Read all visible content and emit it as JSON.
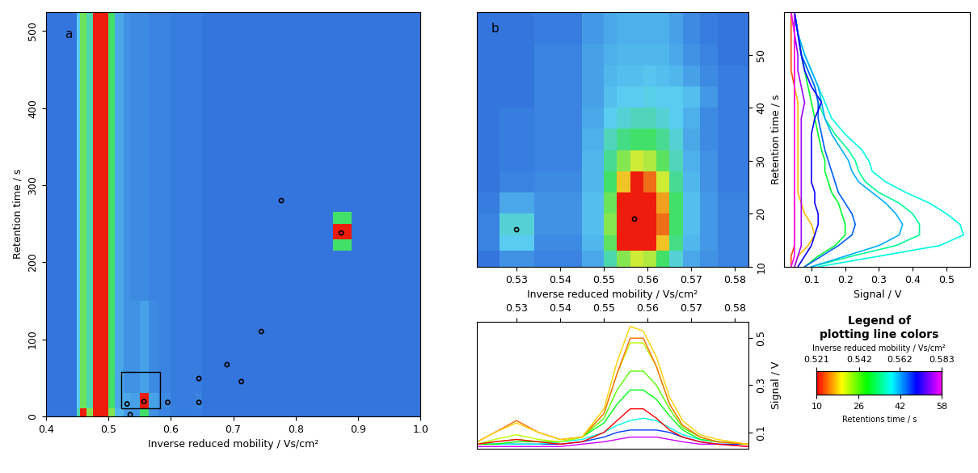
{
  "chart_data": [
    {
      "type": "heatmap",
      "panel_label": "a",
      "x_label": "Inverse reduced mobility / Vs/cm²",
      "y_label": "Retention time / s",
      "xlim": [
        0.4,
        1.0
      ],
      "ylim": [
        0,
        525
      ],
      "xticks": [
        0.4,
        0.5,
        0.6,
        0.7,
        0.8,
        0.9,
        {
          "value": 1,
          "label": "1.0"
        }
      ],
      "yticks": [
        0,
        100,
        200,
        300,
        400,
        500
      ],
      "x_edges": [
        0.4,
        0.45,
        0.455,
        0.465,
        0.475,
        0.5,
        0.51,
        0.525,
        0.535,
        0.55,
        0.565,
        0.58,
        0.6,
        0.64,
        0.65,
        0.86,
        0.89,
        1.0
      ],
      "y_edges": [
        0,
        10,
        30,
        150,
        215,
        230,
        250,
        265,
        525
      ],
      "color_range": [
        0.05,
        0.55
      ],
      "cells": [
        [
          0.08,
          0.25,
          0.6,
          0.35,
          0.6,
          0.35,
          0.17,
          0.13,
          0.13,
          0.3,
          0.12,
          0.1,
          0.09,
          0.09,
          0.08,
          0.08,
          0.08
        ],
        [
          0.08,
          0.2,
          0.33,
          0.25,
          0.6,
          0.3,
          0.15,
          0.15,
          0.14,
          0.55,
          0.14,
          0.11,
          0.09,
          0.1,
          0.08,
          0.08,
          0.08
        ],
        [
          0.08,
          0.2,
          0.33,
          0.25,
          0.6,
          0.3,
          0.15,
          0.12,
          0.12,
          0.14,
          0.11,
          0.1,
          0.09,
          0.09,
          0.08,
          0.08,
          0.08
        ],
        [
          0.08,
          0.2,
          0.33,
          0.25,
          0.6,
          0.3,
          0.15,
          0.12,
          0.11,
          0.11,
          0.1,
          0.1,
          0.09,
          0.09,
          0.08,
          0.08,
          0.08
        ],
        [
          0.08,
          0.2,
          0.33,
          0.25,
          0.6,
          0.3,
          0.15,
          0.12,
          0.11,
          0.11,
          0.1,
          0.1,
          0.09,
          0.09,
          0.08,
          0.3,
          0.08
        ],
        [
          0.08,
          0.2,
          0.33,
          0.25,
          0.6,
          0.3,
          0.15,
          0.12,
          0.11,
          0.11,
          0.1,
          0.1,
          0.09,
          0.09,
          0.08,
          0.55,
          0.08
        ],
        [
          0.08,
          0.2,
          0.33,
          0.25,
          0.6,
          0.3,
          0.15,
          0.12,
          0.11,
          0.11,
          0.1,
          0.1,
          0.09,
          0.09,
          0.08,
          0.3,
          0.08
        ],
        [
          0.08,
          0.2,
          0.33,
          0.25,
          0.6,
          0.3,
          0.15,
          0.12,
          0.11,
          0.11,
          0.1,
          0.1,
          0.09,
          0.09,
          0.08,
          0.08,
          0.08
        ]
      ],
      "points": [
        [
          0.53,
          16
        ],
        [
          0.535,
          2
        ],
        [
          0.557,
          19
        ],
        [
          0.595,
          18
        ],
        [
          0.645,
          18
        ],
        [
          0.645,
          49
        ],
        [
          0.69,
          67
        ],
        [
          0.713,
          45
        ],
        [
          0.745,
          110
        ],
        [
          0.777,
          280
        ],
        [
          0.873,
          238
        ]
      ],
      "zoom_box": {
        "x": [
          0.521,
          0.583
        ],
        "y": [
          10,
          58
        ]
      }
    },
    {
      "type": "heatmap",
      "panel_label": "b",
      "x_label": "Inverse reduced mobility / Vs/cm²",
      "y_label": "Retention time / s",
      "xlim": [
        0.521,
        0.583
      ],
      "ylim": [
        10,
        58
      ],
      "xticks": [
        0.53,
        0.54,
        0.55,
        0.56,
        0.57,
        0.58
      ],
      "yticks": [
        10,
        20,
        30,
        40,
        50
      ],
      "x_edges": [
        0.521,
        0.526,
        0.534,
        0.545,
        0.55,
        0.553,
        0.556,
        0.559,
        0.562,
        0.565,
        0.568,
        0.572,
        0.576,
        0.583
      ],
      "y_edges": [
        10,
        13,
        16,
        20,
        24,
        28,
        32,
        36,
        40,
        44,
        48,
        52,
        58
      ],
      "color_range": [
        0.05,
        0.55
      ],
      "cells": [
        [
          0.08,
          0.12,
          0.1,
          0.15,
          0.25,
          0.35,
          0.4,
          0.38,
          0.3,
          0.22,
          0.15,
          0.12,
          0.1
        ],
        [
          0.1,
          0.2,
          0.11,
          0.17,
          0.32,
          0.55,
          0.58,
          0.55,
          0.45,
          0.28,
          0.17,
          0.13,
          0.1
        ],
        [
          0.1,
          0.22,
          0.12,
          0.18,
          0.35,
          0.58,
          0.6,
          0.6,
          0.5,
          0.3,
          0.18,
          0.13,
          0.1
        ],
        [
          0.09,
          0.15,
          0.12,
          0.18,
          0.33,
          0.55,
          0.6,
          0.58,
          0.47,
          0.3,
          0.18,
          0.13,
          0.1
        ],
        [
          0.08,
          0.1,
          0.11,
          0.17,
          0.3,
          0.45,
          0.55,
          0.5,
          0.4,
          0.27,
          0.17,
          0.12,
          0.09
        ],
        [
          0.08,
          0.09,
          0.1,
          0.17,
          0.27,
          0.35,
          0.4,
          0.38,
          0.32,
          0.24,
          0.16,
          0.12,
          0.09
        ],
        [
          0.08,
          0.09,
          0.1,
          0.16,
          0.24,
          0.28,
          0.3,
          0.3,
          0.27,
          0.22,
          0.15,
          0.11,
          0.09
        ],
        [
          0.08,
          0.09,
          0.1,
          0.15,
          0.2,
          0.22,
          0.24,
          0.24,
          0.22,
          0.2,
          0.16,
          0.11,
          0.09
        ],
        [
          0.08,
          0.08,
          0.1,
          0.14,
          0.18,
          0.2,
          0.2,
          0.21,
          0.2,
          0.2,
          0.18,
          0.13,
          0.09
        ],
        [
          0.08,
          0.08,
          0.1,
          0.14,
          0.17,
          0.18,
          0.18,
          0.19,
          0.18,
          0.17,
          0.14,
          0.11,
          0.09
        ],
        [
          0.08,
          0.08,
          0.1,
          0.14,
          0.16,
          0.17,
          0.17,
          0.17,
          0.17,
          0.15,
          0.12,
          0.1,
          0.08
        ],
        [
          0.08,
          0.08,
          0.09,
          0.13,
          0.15,
          0.16,
          0.16,
          0.16,
          0.16,
          0.14,
          0.11,
          0.09,
          0.08
        ]
      ],
      "points": [
        [
          0.53,
          17
        ],
        [
          0.557,
          19
        ]
      ]
    },
    {
      "type": "line",
      "orientation": "horizontal",
      "x_label": "Signal / V",
      "xlim": [
        0.02,
        0.57
      ],
      "ylim": [
        10,
        58
      ],
      "xticks": [
        0.1,
        0.2,
        0.3,
        0.4,
        0.5
      ],
      "tick_labels": "x",
      "y": [
        10,
        12,
        14,
        16,
        18,
        20,
        22,
        24,
        26,
        28,
        30,
        32,
        35,
        38,
        41,
        44,
        47,
        50,
        54,
        58
      ],
      "series": [
        {
          "mobility": 0.525,
          "values": [
            0.04,
            0.04,
            0.05,
            0.05,
            0.05,
            0.05,
            0.05,
            0.05,
            0.05,
            0.05,
            0.05,
            0.05,
            0.05,
            0.05,
            0.05,
            0.05,
            0.04,
            0.04,
            0.04,
            0.04
          ]
        },
        {
          "mobility": 0.53,
          "values": [
            0.05,
            0.06,
            0.09,
            0.11,
            0.1,
            0.08,
            0.07,
            0.06,
            0.06,
            0.06,
            0.06,
            0.06,
            0.06,
            0.06,
            0.06,
            0.05,
            0.05,
            0.05,
            0.05,
            0.04
          ]
        },
        {
          "mobility": 0.548,
          "values": [
            0.08,
            0.12,
            0.17,
            0.2,
            0.2,
            0.19,
            0.18,
            0.16,
            0.15,
            0.14,
            0.14,
            0.13,
            0.12,
            0.11,
            0.1,
            0.09,
            0.08,
            0.07,
            0.06,
            0.05
          ]
        },
        {
          "mobility": 0.553,
          "values": [
            0.1,
            0.22,
            0.35,
            0.42,
            0.42,
            0.4,
            0.36,
            0.3,
            0.26,
            0.24,
            0.23,
            0.21,
            0.17,
            0.14,
            0.12,
            0.11,
            0.09,
            0.07,
            0.06,
            0.05
          ]
        },
        {
          "mobility": 0.557,
          "values": [
            0.12,
            0.3,
            0.48,
            0.55,
            0.54,
            0.5,
            0.45,
            0.38,
            0.32,
            0.28,
            0.27,
            0.25,
            0.2,
            0.16,
            0.14,
            0.12,
            0.1,
            0.08,
            0.06,
            0.05
          ]
        },
        {
          "mobility": 0.562,
          "values": [
            0.1,
            0.2,
            0.3,
            0.36,
            0.37,
            0.35,
            0.32,
            0.28,
            0.24,
            0.22,
            0.21,
            0.19,
            0.16,
            0.14,
            0.13,
            0.12,
            0.1,
            0.08,
            0.06,
            0.05
          ]
        },
        {
          "mobility": 0.566,
          "values": [
            0.08,
            0.13,
            0.18,
            0.22,
            0.23,
            0.22,
            0.2,
            0.18,
            0.17,
            0.16,
            0.15,
            0.14,
            0.13,
            0.12,
            0.12,
            0.11,
            0.09,
            0.07,
            0.06,
            0.05
          ]
        },
        {
          "mobility": 0.571,
          "values": [
            0.06,
            0.08,
            0.1,
            0.11,
            0.12,
            0.12,
            0.11,
            0.11,
            0.1,
            0.1,
            0.1,
            0.1,
            0.1,
            0.11,
            0.13,
            0.1,
            0.08,
            0.07,
            0.06,
            0.05
          ]
        },
        {
          "mobility": 0.578,
          "values": [
            0.05,
            0.06,
            0.07,
            0.07,
            0.07,
            0.07,
            0.07,
            0.07,
            0.07,
            0.07,
            0.07,
            0.07,
            0.07,
            0.07,
            0.08,
            0.07,
            0.06,
            0.06,
            0.05,
            0.05
          ]
        },
        {
          "mobility": 0.583,
          "values": [
            0.04,
            0.05,
            0.05,
            0.05,
            0.05,
            0.05,
            0.05,
            0.05,
            0.05,
            0.05,
            0.05,
            0.05,
            0.05,
            0.05,
            0.05,
            0.05,
            0.05,
            0.05,
            0.05,
            0.04
          ]
        }
      ]
    },
    {
      "type": "line",
      "y_label": "Signal / V",
      "xlim": [
        0.521,
        0.583
      ],
      "ylim": [
        0.03,
        0.57
      ],
      "xticks": [
        0.53,
        0.54,
        0.55,
        0.56,
        0.57,
        0.58
      ],
      "yticks": [
        0.1,
        0.3,
        0.5
      ],
      "x": [
        0.521,
        0.525,
        0.53,
        0.535,
        0.54,
        0.545,
        0.55,
        0.553,
        0.556,
        0.559,
        0.562,
        0.565,
        0.568,
        0.572,
        0.576,
        0.583
      ],
      "series": [
        {
          "retention_time": 56,
          "values": [
            0.04,
            0.04,
            0.04,
            0.04,
            0.04,
            0.05,
            0.06,
            0.07,
            0.08,
            0.08,
            0.08,
            0.07,
            0.06,
            0.05,
            0.05,
            0.04
          ]
        },
        {
          "retention_time": 46,
          "values": [
            0.05,
            0.05,
            0.05,
            0.05,
            0.05,
            0.06,
            0.08,
            0.1,
            0.11,
            0.11,
            0.11,
            0.1,
            0.08,
            0.06,
            0.05,
            0.05
          ]
        },
        {
          "retention_time": 38,
          "values": [
            0.05,
            0.05,
            0.05,
            0.05,
            0.06,
            0.07,
            0.1,
            0.13,
            0.15,
            0.16,
            0.15,
            0.12,
            0.09,
            0.07,
            0.06,
            0.05
          ]
        },
        {
          "retention_time": 30,
          "values": [
            0.05,
            0.05,
            0.06,
            0.06,
            0.06,
            0.08,
            0.14,
            0.22,
            0.28,
            0.28,
            0.24,
            0.17,
            0.11,
            0.07,
            0.06,
            0.05
          ]
        },
        {
          "retention_time": 26,
          "values": [
            0.05,
            0.06,
            0.07,
            0.06,
            0.06,
            0.08,
            0.16,
            0.28,
            0.36,
            0.36,
            0.3,
            0.2,
            0.12,
            0.08,
            0.06,
            0.05
          ]
        },
        {
          "retention_time": 22,
          "values": [
            0.05,
            0.07,
            0.09,
            0.07,
            0.06,
            0.08,
            0.18,
            0.35,
            0.48,
            0.48,
            0.38,
            0.22,
            0.13,
            0.08,
            0.06,
            0.05
          ]
        },
        {
          "retention_time": 10,
          "values": [
            0.05,
            0.06,
            0.07,
            0.06,
            0.05,
            0.06,
            0.1,
            0.15,
            0.2,
            0.2,
            0.16,
            0.11,
            0.08,
            0.06,
            0.05,
            0.04
          ]
        },
        {
          "retention_time": 14,
          "values": [
            0.06,
            0.1,
            0.15,
            0.1,
            0.07,
            0.08,
            0.18,
            0.35,
            0.5,
            0.5,
            0.38,
            0.22,
            0.13,
            0.08,
            0.06,
            0.05
          ]
        },
        {
          "retention_time": 18,
          "values": [
            0.06,
            0.1,
            0.14,
            0.1,
            0.07,
            0.08,
            0.2,
            0.4,
            0.55,
            0.53,
            0.42,
            0.25,
            0.15,
            0.09,
            0.07,
            0.05
          ]
        }
      ]
    },
    {
      "type": "colorbar",
      "title": "Legend of\nplotting line colors",
      "top_label": "Inverse reduced mobility / Vs/cm²",
      "bottom_label": "Retentions time / s",
      "top_range": [
        0.521,
        0.583
      ],
      "top_ticks": [
        0.521,
        0.542,
        0.562,
        0.583
      ],
      "bottom_range": [
        10,
        58
      ],
      "bottom_ticks": [
        10,
        26,
        42,
        58
      ]
    }
  ]
}
